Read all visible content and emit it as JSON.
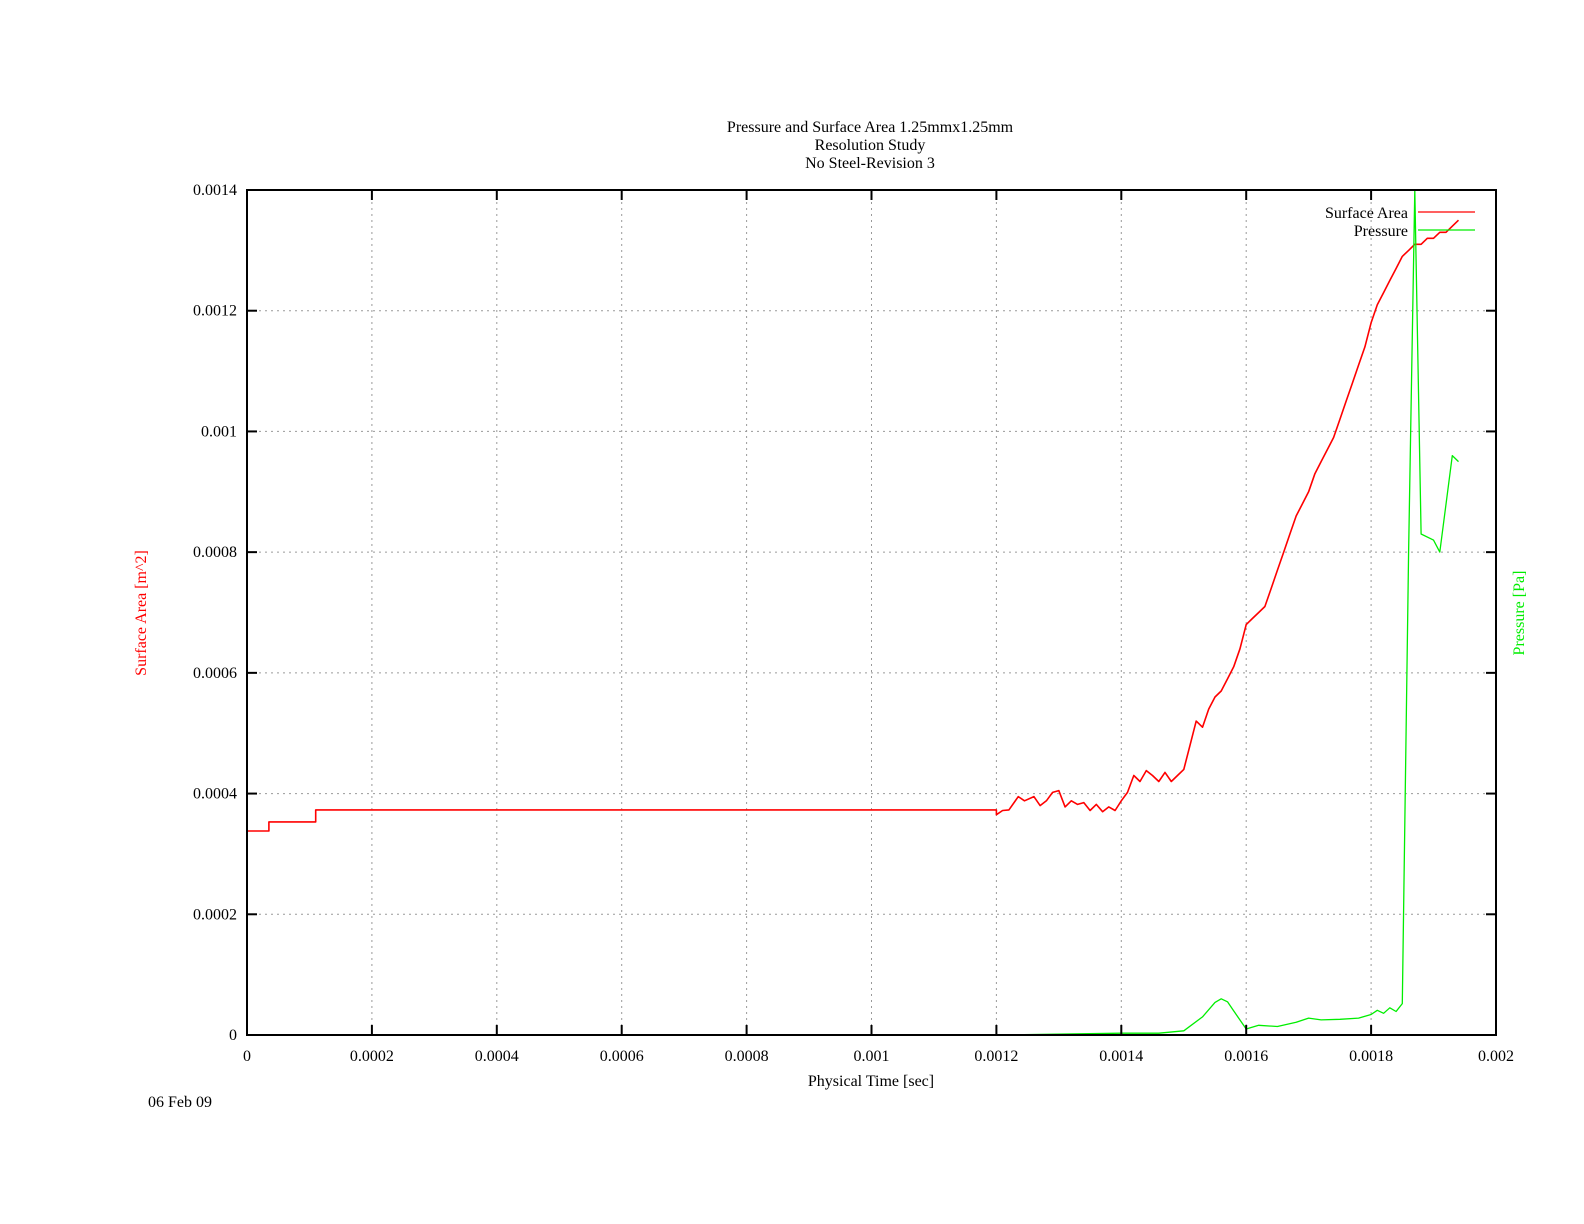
{
  "date_stamp": "06 Feb 09",
  "chart_data": {
    "type": "line",
    "title": [
      "Pressure and Surface Area 1.25mmx1.25mm",
      "Resolution Study",
      "No Steel-Revision 3"
    ],
    "xlabel": "Physical Time [sec]",
    "ylabel": "Surface Area [m^2]",
    "y2label": "Pressure [Pa]",
    "xlim": [
      0,
      0.002
    ],
    "ylim": [
      0,
      0.0014
    ],
    "grid": true,
    "legend_position": "top-right",
    "x_ticks": [
      "0",
      "0.0002",
      "0.0004",
      "0.0006",
      "0.0008",
      "0.001",
      "0.0012",
      "0.0014",
      "0.0016",
      "0.0018",
      "0.002"
    ],
    "y_ticks": [
      "0",
      "0.0002",
      "0.0004",
      "0.0006",
      "0.0008",
      "0.001",
      "0.0012",
      "0.0014"
    ],
    "series": [
      {
        "name": "Surface Area",
        "color": "#ff0000",
        "axis": "left",
        "x": [
          0,
          3.5e-05,
          3.5e-05,
          0.00011,
          0.00011,
          0.0012,
          0.0012,
          0.00121,
          0.00122,
          0.001235,
          0.001245,
          0.00126,
          0.00127,
          0.00128,
          0.00129,
          0.0013,
          0.00131,
          0.00132,
          0.00133,
          0.00134,
          0.00135,
          0.00136,
          0.00137,
          0.00138,
          0.00139,
          0.0014,
          0.00141,
          0.00142,
          0.00143,
          0.00144,
          0.00145,
          0.00146,
          0.00147,
          0.00148,
          0.00149,
          0.0015,
          0.00151,
          0.00152,
          0.00153,
          0.00154,
          0.00155,
          0.00156,
          0.00157,
          0.00158,
          0.00159,
          0.0016,
          0.00161,
          0.00162,
          0.00163,
          0.00164,
          0.00165,
          0.00166,
          0.00167,
          0.00168,
          0.00169,
          0.0017,
          0.00171,
          0.00172,
          0.00173,
          0.00174,
          0.00175,
          0.00176,
          0.00177,
          0.00178,
          0.00179,
          0.0018,
          0.00181,
          0.00182,
          0.00183,
          0.00184,
          0.00185,
          0.00186,
          0.00187,
          0.00188,
          0.00189,
          0.0019,
          0.00191,
          0.00192,
          0.00193,
          0.00194
        ],
        "values": [
          0.000338,
          0.000338,
          0.000353,
          0.000353,
          0.000373,
          0.000373,
          0.000365,
          0.000372,
          0.000373,
          0.000395,
          0.000388,
          0.000395,
          0.00038,
          0.000388,
          0.000402,
          0.000405,
          0.000378,
          0.000388,
          0.000382,
          0.000385,
          0.000372,
          0.000382,
          0.00037,
          0.000378,
          0.000372,
          0.000388,
          0.000402,
          0.00043,
          0.00042,
          0.000438,
          0.00043,
          0.00042,
          0.000435,
          0.00042,
          0.00043,
          0.00044,
          0.00048,
          0.00052,
          0.00051,
          0.00054,
          0.00056,
          0.00057,
          0.00059,
          0.00061,
          0.00064,
          0.00068,
          0.00069,
          0.0007,
          0.00071,
          0.00074,
          0.00077,
          0.0008,
          0.00083,
          0.00086,
          0.00088,
          0.0009,
          0.00093,
          0.00095,
          0.00097,
          0.00099,
          0.00102,
          0.00105,
          0.00108,
          0.00111,
          0.00114,
          0.00118,
          0.00121,
          0.00123,
          0.00125,
          0.00127,
          0.00129,
          0.0013,
          0.00131,
          0.00131,
          0.00132,
          0.00132,
          0.00133,
          0.00133,
          0.00134,
          0.00135
        ]
      },
      {
        "name": "Pressure",
        "color": "#00ee00",
        "axis": "right",
        "x": [
          0,
          0.0012,
          0.0014,
          0.00146,
          0.0015,
          0.00153,
          0.00155,
          0.00156,
          0.00157,
          0.00158,
          0.0016,
          0.00162,
          0.00165,
          0.00168,
          0.0017,
          0.00172,
          0.00175,
          0.00178,
          0.0018,
          0.00181,
          0.00182,
          0.00183,
          0.00184,
          0.00185,
          0.00186,
          0.00187,
          0.00187,
          0.00188,
          0.0019,
          0.00191,
          0.00193,
          0.00194
        ],
        "values": [
          0,
          0,
          3e-06,
          3e-06,
          7e-06,
          3e-05,
          5.4e-05,
          6e-05,
          5.5e-05,
          4e-05,
          1e-05,
          1.6e-05,
          1.4e-05,
          2.1e-05,
          2.8e-05,
          2.5e-05,
          2.6e-05,
          2.8e-05,
          3.4e-05,
          4.1e-05,
          3.6e-05,
          4.5e-05,
          3.9e-05,
          5.2e-05,
          0.0008,
          0.0014,
          0.0014,
          0.00083,
          0.00082,
          0.0008,
          0.00096,
          0.00095
        ]
      }
    ]
  }
}
